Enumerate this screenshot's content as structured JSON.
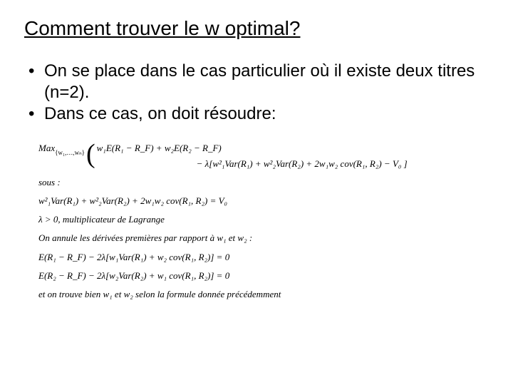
{
  "title": "Comment trouver le w optimal?",
  "bullets": {
    "b1": "On se place dans le cas particulier où il existe deux titres (n=2).",
    "b2": "Dans ce cas, on doit résoudre:"
  },
  "math": {
    "max_prefix": "Max",
    "max_subscript": "{w₁,…,wₙ}",
    "obj_line1": "w₁E(R₁ − R_F) + w₂E(R₂ − R_F)",
    "obj_line2": "− λ[w²₁Var(R₁) + w²₂Var(R₂) + 2w₁w₂ cov(R₁, R₂) − V₀ ]",
    "sous_label": "sous :",
    "constraint": "w²₁Var(R₁) + w²₂Var(R₂) + 2w₁w₂ cov(R₁, R₂) = V₀",
    "lambda_line": "λ > 0, multiplicateur de Lagrange",
    "deriv_intro": "On annule les dérivées premières par rapport à w₁ et w₂ :",
    "foc1": "E(R₁ − R_F) − 2λ[w₁Var(R₁) + w₂ cov(R₁, R₂)] = 0",
    "foc2": "E(R₂ − R_F) − 2λ[w₂Var(R₂) + w₁ cov(R₁, R₂)] = 0",
    "conclusion": "et on trouve bien w₁ et w₂ selon la  formule donnée précédemment"
  },
  "style": {
    "bg": "#ffffff",
    "text": "#000000",
    "title_fontsize": 28,
    "bullet_fontsize": 24,
    "math_fontsize": 13,
    "math_font": "Times New Roman",
    "body_font": "Arial"
  }
}
